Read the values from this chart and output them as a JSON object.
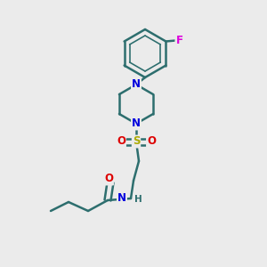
{
  "background_color": "#ebebeb",
  "bond_color": "#2d6e6e",
  "bond_width": 1.8,
  "atom_colors": {
    "N": "#0000dd",
    "O": "#dd0000",
    "F": "#dd00dd",
    "S": "#aaaa00",
    "H": "#2d6e6e",
    "C": "#2d6e6e"
  },
  "font_size_atom": 8.5,
  "font_size_h": 7.5,
  "figsize": [
    3.0,
    3.0
  ],
  "dpi": 100
}
